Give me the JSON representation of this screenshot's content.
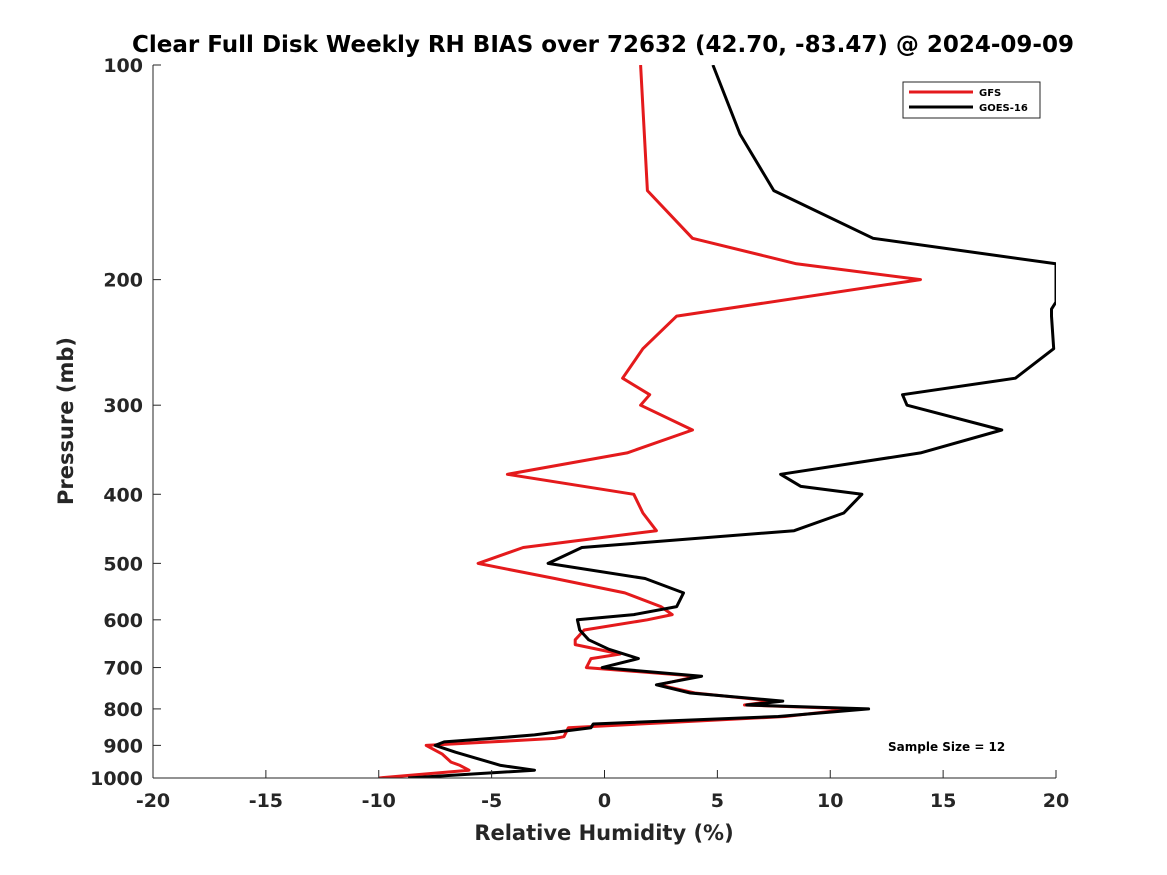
{
  "chart_data": {
    "type": "line",
    "title": "Clear Full Disk Weekly RH BIAS over 72632 (42.70, -83.47) @ 2024-09-09",
    "xlabel": "Relative Humidity (%)",
    "ylabel": "Pressure (mb)",
    "xlim": [
      -20,
      20
    ],
    "ylim": [
      100,
      1000
    ],
    "y_scale": "log",
    "y_reversed": true,
    "x_ticks": [
      "-20",
      "-15",
      "-10",
      "-5",
      "0",
      "5",
      "10",
      "15",
      "20"
    ],
    "y_ticks": [
      "100",
      "200",
      "300",
      "400",
      "500",
      "600",
      "700",
      "800",
      "900",
      "1000"
    ],
    "grid": false,
    "legend_position": "top-right",
    "annotation": "Sample Size = 12",
    "series": [
      {
        "name": "GFS",
        "color": "#e41a1c",
        "points": [
          [
            1.6,
            100
          ],
          [
            1.9,
            150
          ],
          [
            3.9,
            175
          ],
          [
            8.5,
            190
          ],
          [
            14.0,
            200
          ],
          [
            3.2,
            225
          ],
          [
            1.7,
            250
          ],
          [
            0.8,
            275
          ],
          [
            2.0,
            290
          ],
          [
            1.6,
            300
          ],
          [
            3.9,
            325
          ],
          [
            1.0,
            350
          ],
          [
            -4.3,
            375
          ],
          [
            1.3,
            400
          ],
          [
            1.7,
            425
          ],
          [
            2.3,
            450
          ],
          [
            -0.1,
            460
          ],
          [
            -3.6,
            475
          ],
          [
            -5.6,
            500
          ],
          [
            -2.2,
            525
          ],
          [
            0.9,
            550
          ],
          [
            2.5,
            575
          ],
          [
            3.0,
            590
          ],
          [
            1.9,
            600
          ],
          [
            -0.9,
            620
          ],
          [
            -1.3,
            640
          ],
          [
            -1.3,
            650
          ],
          [
            0.7,
            670
          ],
          [
            -0.6,
            680
          ],
          [
            -0.8,
            700
          ],
          [
            4.1,
            720
          ],
          [
            2.4,
            740
          ],
          [
            4.0,
            760
          ],
          [
            7.5,
            780
          ],
          [
            6.2,
            790
          ],
          [
            11.0,
            800
          ],
          [
            8.0,
            820
          ],
          [
            -1.6,
            850
          ],
          [
            -1.8,
            875
          ],
          [
            -2.2,
            880
          ],
          [
            -5.0,
            890
          ],
          [
            -7.9,
            900
          ],
          [
            -7.2,
            925
          ],
          [
            -6.8,
            950
          ],
          [
            -6.4,
            960
          ],
          [
            -6.0,
            975
          ],
          [
            -10.0,
            1000
          ]
        ]
      },
      {
        "name": "GOES-16",
        "color": "#000000",
        "points": [
          [
            4.8,
            100
          ],
          [
            6.0,
            125
          ],
          [
            7.5,
            150
          ],
          [
            11.9,
            175
          ],
          [
            20.0,
            190
          ],
          [
            20.0,
            215
          ],
          [
            19.8,
            220
          ],
          [
            19.8,
            225
          ],
          [
            19.9,
            250
          ],
          [
            18.2,
            275
          ],
          [
            13.2,
            290
          ],
          [
            13.4,
            300
          ],
          [
            17.6,
            325
          ],
          [
            14.0,
            350
          ],
          [
            7.8,
            375
          ],
          [
            8.7,
            390
          ],
          [
            11.4,
            400
          ],
          [
            10.6,
            425
          ],
          [
            8.4,
            450
          ],
          [
            -1.0,
            475
          ],
          [
            -2.5,
            500
          ],
          [
            1.8,
            525
          ],
          [
            3.5,
            550
          ],
          [
            3.2,
            575
          ],
          [
            1.3,
            590
          ],
          [
            -1.2,
            600
          ],
          [
            -1.1,
            620
          ],
          [
            -0.7,
            640
          ],
          [
            0.2,
            660
          ],
          [
            1.5,
            680
          ],
          [
            -0.1,
            700
          ],
          [
            4.3,
            720
          ],
          [
            2.3,
            740
          ],
          [
            3.8,
            760
          ],
          [
            7.9,
            780
          ],
          [
            6.3,
            790
          ],
          [
            11.7,
            800
          ],
          [
            7.7,
            820
          ],
          [
            -0.5,
            840
          ],
          [
            -0.6,
            850
          ],
          [
            -3.1,
            870
          ],
          [
            -5.0,
            880
          ],
          [
            -7.1,
            890
          ],
          [
            -7.5,
            900
          ],
          [
            -6.6,
            920
          ],
          [
            -5.6,
            940
          ],
          [
            -4.6,
            960
          ],
          [
            -3.1,
            975
          ],
          [
            -8.7,
            1000
          ]
        ]
      }
    ]
  }
}
